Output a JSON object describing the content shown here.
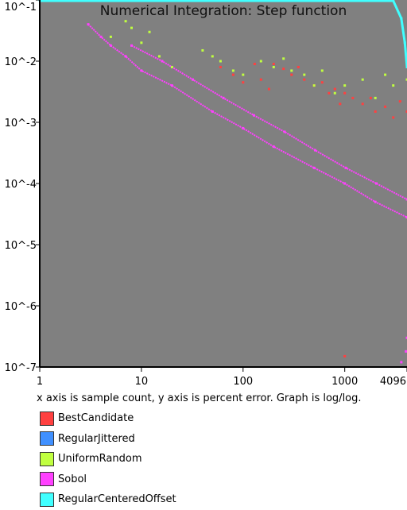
{
  "chart_data": {
    "type": "scatter",
    "title": "Numerical Integration: Step function",
    "caption": "x axis is sample count, y axis is percent error. Graph is log/log.",
    "x_scale": "log",
    "y_scale": "log",
    "xlim": [
      1,
      4096
    ],
    "ylim": [
      1e-07,
      0.1
    ],
    "x_ticks": [
      {
        "value": 1,
        "label": "1"
      },
      {
        "value": 10,
        "label": "10"
      },
      {
        "value": 100,
        "label": "100"
      },
      {
        "value": 1000,
        "label": "1000"
      },
      {
        "value": 4096,
        "label": "4096"
      }
    ],
    "y_ticks": [
      {
        "value": 0.1,
        "label": "10^-1"
      },
      {
        "value": 0.01,
        "label": "10^-2"
      },
      {
        "value": 0.001,
        "label": "10^-3"
      },
      {
        "value": 0.0001,
        "label": "10^-4"
      },
      {
        "value": 1e-05,
        "label": "10^-5"
      },
      {
        "value": 1e-06,
        "label": "10^-6"
      },
      {
        "value": 1e-07,
        "label": "10^-7"
      }
    ],
    "grid": false,
    "plot_background": "#808080",
    "legend_position": "below",
    "series": [
      {
        "name": "BestCandidate",
        "color": "#ff4040",
        "points": [
          [
            60,
            0.008
          ],
          [
            80,
            0.006
          ],
          [
            100,
            0.0045
          ],
          [
            130,
            0.009
          ],
          [
            150,
            0.005
          ],
          [
            180,
            0.0035
          ],
          [
            200,
            0.009
          ],
          [
            250,
            0.0075
          ],
          [
            300,
            0.006
          ],
          [
            350,
            0.008
          ],
          [
            400,
            0.005
          ],
          [
            500,
            0.004
          ],
          [
            600,
            0.0045
          ],
          [
            700,
            0.003
          ],
          [
            800,
            0.0035
          ],
          [
            900,
            0.002
          ],
          [
            1000,
            0.003
          ],
          [
            1200,
            0.0025
          ],
          [
            1500,
            0.002
          ],
          [
            1800,
            0.0025
          ],
          [
            2000,
            0.0015
          ],
          [
            2500,
            0.0018
          ],
          [
            3000,
            0.0012
          ],
          [
            3500,
            0.0022
          ],
          [
            4096,
            0.0015
          ],
          [
            1000,
            1.5e-07
          ]
        ]
      },
      {
        "name": "RegularJittered",
        "color": "#4090ff",
        "points": []
      },
      {
        "name": "UniformRandom",
        "color": "#c0ff40",
        "points": [
          [
            5,
            0.025
          ],
          [
            7,
            0.045
          ],
          [
            8,
            0.035
          ],
          [
            10,
            0.02
          ],
          [
            12,
            0.03
          ],
          [
            15,
            0.012
          ],
          [
            20,
            0.008
          ],
          [
            40,
            0.015
          ],
          [
            50,
            0.012
          ],
          [
            60,
            0.01
          ],
          [
            80,
            0.007
          ],
          [
            100,
            0.006
          ],
          [
            150,
            0.01
          ],
          [
            200,
            0.008
          ],
          [
            250,
            0.011
          ],
          [
            300,
            0.007
          ],
          [
            400,
            0.006
          ],
          [
            500,
            0.004
          ],
          [
            600,
            0.007
          ],
          [
            800,
            0.003
          ],
          [
            1000,
            0.004
          ],
          [
            1500,
            0.005
          ],
          [
            2000,
            0.0025
          ],
          [
            2500,
            0.006
          ],
          [
            3000,
            0.004
          ],
          [
            4096,
            0.005
          ]
        ]
      },
      {
        "name": "Sobol",
        "color": "#ff40ff",
        "points": [
          [
            3,
            0.04
          ],
          [
            4,
            0.025
          ],
          [
            5,
            0.018
          ],
          [
            7,
            0.012
          ],
          [
            10,
            0.007
          ],
          [
            20,
            0.004
          ],
          [
            50,
            0.0015
          ],
          [
            100,
            0.0008
          ],
          [
            200,
            0.0004
          ],
          [
            500,
            0.00018
          ],
          [
            1000,
            0.0001
          ],
          [
            2000,
            5e-05
          ],
          [
            4096,
            2.8e-05
          ],
          [
            8,
            0.018
          ],
          [
            16,
            0.01
          ],
          [
            32,
            0.005
          ],
          [
            64,
            0.0025
          ],
          [
            128,
            0.0013
          ],
          [
            256,
            0.0007
          ],
          [
            512,
            0.00035
          ],
          [
            1024,
            0.00018
          ],
          [
            2048,
            0.0001
          ],
          [
            4096,
            5.5e-05
          ],
          [
            4096,
            3e-07
          ],
          [
            4000,
            1.8e-07
          ],
          [
            3600,
            1.2e-07
          ]
        ]
      },
      {
        "name": "RegularCenteredOffset",
        "color": "#40ffff",
        "points": [
          [
            1,
            0.1
          ],
          [
            3000,
            0.1
          ],
          [
            3600,
            0.05
          ],
          [
            3900,
            0.02
          ],
          [
            4096,
            0.008
          ]
        ]
      }
    ]
  }
}
